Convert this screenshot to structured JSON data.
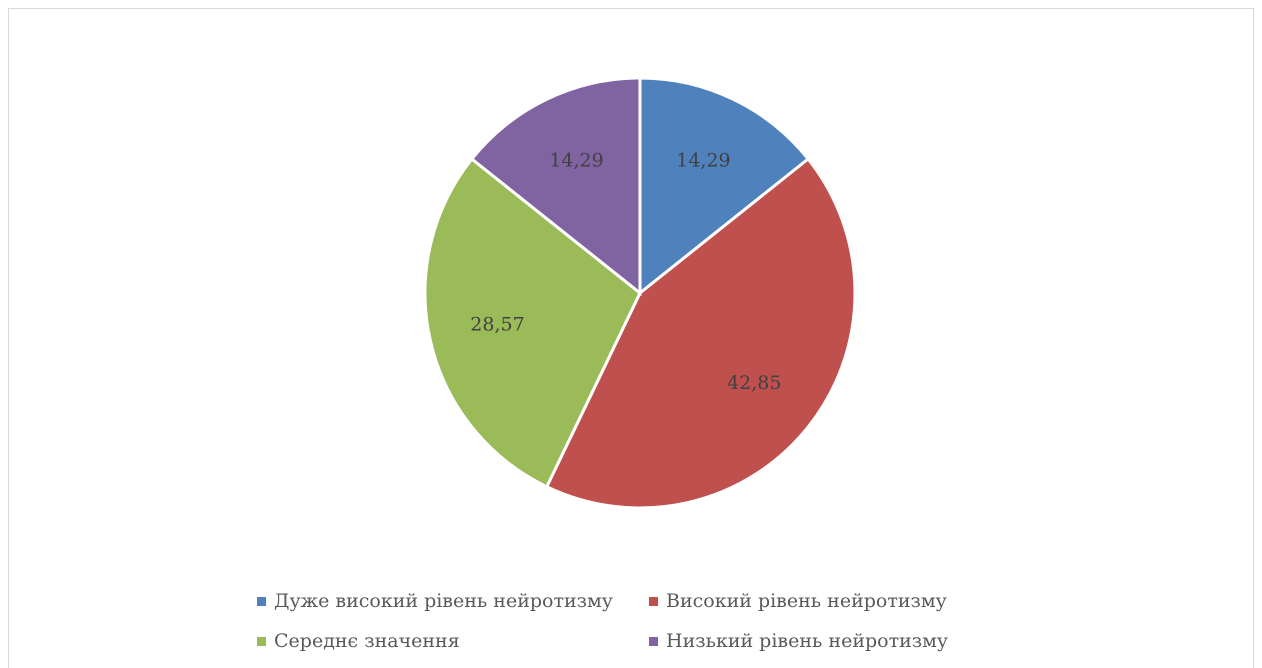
{
  "chart_data": {
    "type": "pie",
    "categories": [
      "Дуже високий рівень нейротизму",
      "Високий рівень нейротизму",
      "Середнє значення",
      "Низький рівень нейротизму"
    ],
    "values": [
      14.29,
      42.85,
      28.57,
      14.29
    ],
    "data_labels": [
      "14,29",
      "42,85",
      "28,57",
      "14,29"
    ],
    "colors": [
      "#4f81bd",
      "#c0504d",
      "#9bbb59",
      "#8064a2"
    ],
    "title": "",
    "legend_position": "bottom"
  }
}
